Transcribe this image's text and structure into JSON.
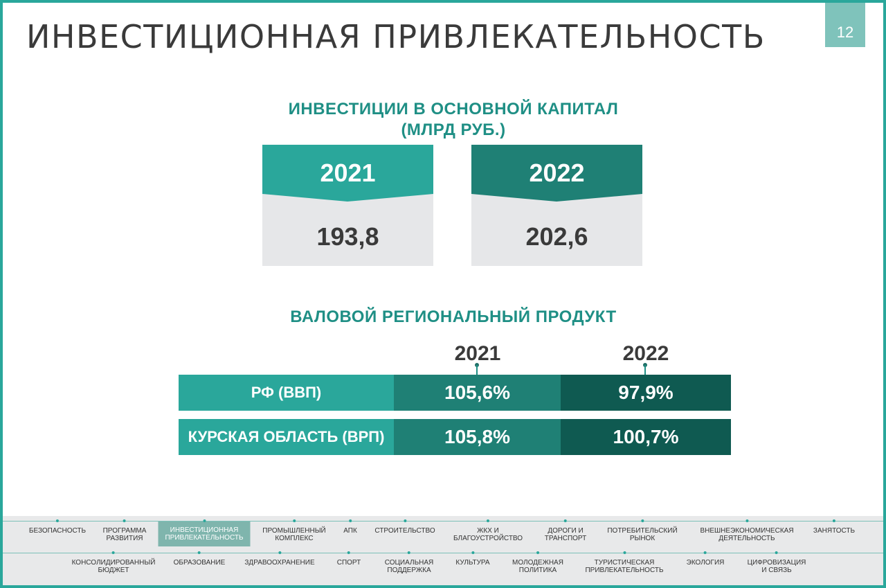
{
  "header": {
    "title": "ИНВЕСТИЦИОННАЯ ПРИВЛЕКАТЕЛЬНОСТЬ",
    "page_number": "12"
  },
  "investments": {
    "title_line1": "ИНВЕСТИЦИИ В ОСНОВНОЙ КАПИТАЛ",
    "title_line2": "(МЛРД РУБ.)",
    "cards": [
      {
        "year": "2021",
        "value": "193,8",
        "color": "#2aa79b"
      },
      {
        "year": "2022",
        "value": "202,6",
        "color": "#1f8075"
      }
    ]
  },
  "grp": {
    "title": "ВАЛОВОЙ РЕГИОНАЛЬНЫЙ ПРОДУКТ",
    "columns": [
      "2021",
      "2022"
    ],
    "rows": [
      {
        "label": "РФ (ВВП)",
        "v2021": "105,6%",
        "v2022": "97,9%"
      },
      {
        "label": "КУРСКАЯ ОБЛАСТЬ (ВРП)",
        "v2021": "105,8%",
        "v2022": "100,7%"
      }
    ]
  },
  "nav": {
    "row1": [
      "БЕЗОПАСНОСТЬ",
      "ПРОГРАММА\nРАЗВИТИЯ",
      "ИНВЕСТИЦИОННАЯ\nПРИВЛЕКАТЕЛЬНОСТЬ",
      "ПРОМЫШЛЕННЫЙ\nКОМПЛЕКС",
      "АПК",
      "СТРОИТЕЛЬСТВО",
      "ЖКХ И\nБЛАГОУСТРОЙСТВО",
      "ДОРОГИ И\nТРАНСПОРТ",
      "ПОТРЕБИТЕЛЬСКИЙ\nРЫНОК",
      "ВНЕШНЕЭКОНОМИЧЕСКАЯ\nДЕЯТЕЛЬНОСТЬ",
      "ЗАНЯТОСТЬ"
    ],
    "row2": [
      "КОНСОЛИДИРОВАННЫЙ\nБЮДЖЕТ",
      "ОБРАЗОВАНИЕ",
      "ЗДРАВООХРАНЕНИЕ",
      "СПОРТ",
      "СОЦИАЛЬНАЯ\nПОДДЕРЖКА",
      "КУЛЬТУРА",
      "МОЛОДЕЖНАЯ\nПОЛИТИКА",
      "ТУРИСТИЧЕСКАЯ\nПРИВЛЕКАТЕЛЬНОСТЬ",
      "ЭКОЛОГИЯ",
      "ЦИФРОВИЗАЦИЯ\nИ СВЯЗЬ"
    ],
    "active": "ИНВЕСТИЦИОННАЯ\nПРИВЛЕКАТЕЛЬНОСТЬ"
  }
}
